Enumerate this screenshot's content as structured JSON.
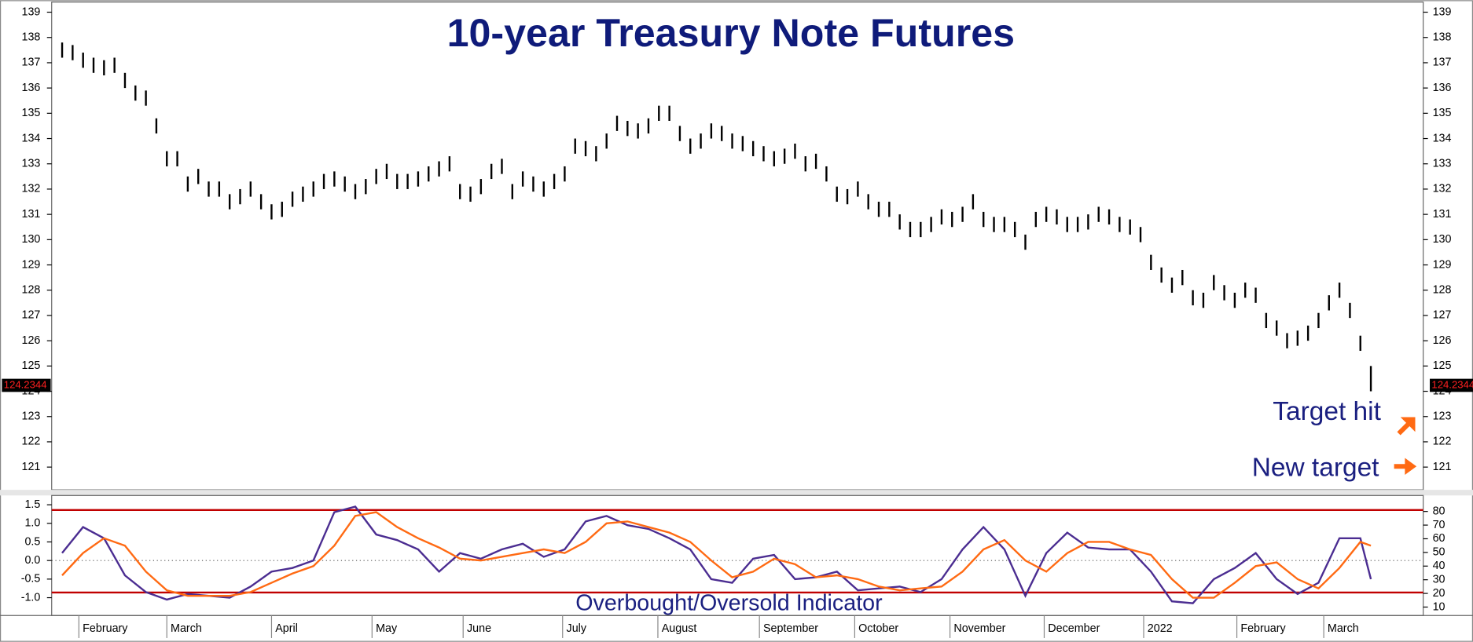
{
  "chart_data": [
    {
      "type": "ohlc",
      "title": "10-year Treasury Note Futures",
      "color": "#000000",
      "xlim": [
        -1,
        130
      ],
      "ylim": [
        120.1,
        139.4
      ],
      "yticks": [
        121,
        122,
        123,
        124,
        125,
        126,
        127,
        128,
        129,
        130,
        131,
        132,
        133,
        134,
        135,
        136,
        137,
        138,
        139
      ],
      "high": [
        137.8,
        137.7,
        137.4,
        137.2,
        137.1,
        137.2,
        136.6,
        136.1,
        135.9,
        134.8,
        133.5,
        133.5,
        132.5,
        132.8,
        132.3,
        132.3,
        131.8,
        132.0,
        132.3,
        131.8,
        131.4,
        131.5,
        131.9,
        132.1,
        132.3,
        132.6,
        132.7,
        132.5,
        132.2,
        132.4,
        132.8,
        133.0,
        132.6,
        132.6,
        132.7,
        132.9,
        133.1,
        133.3,
        132.2,
        132.1,
        132.4,
        133.0,
        133.2,
        132.2,
        132.7,
        132.5,
        132.3,
        132.6,
        132.9,
        134.0,
        133.9,
        133.7,
        134.2,
        134.9,
        134.7,
        134.6,
        134.8,
        135.3,
        135.3,
        134.5,
        134.0,
        134.2,
        134.6,
        134.5,
        134.2,
        134.1,
        133.9,
        133.7,
        133.5,
        133.6,
        133.8,
        133.3,
        133.4,
        132.9,
        132.1,
        132.0,
        132.3,
        131.8,
        131.5,
        131.5,
        131.0,
        130.7,
        130.7,
        130.9,
        131.2,
        131.1,
        131.3,
        131.8,
        131.1,
        130.9,
        130.9,
        130.7,
        130.2,
        131.1,
        131.3,
        131.2,
        130.9,
        130.9,
        131.0,
        131.3,
        131.2,
        130.9,
        130.8,
        130.5,
        129.4,
        128.9,
        128.5,
        128.8,
        128.0,
        127.9,
        128.6,
        128.2,
        127.9,
        128.3,
        128.1,
        127.1,
        126.8,
        126.3,
        126.4,
        126.6,
        127.1,
        127.8,
        128.3,
        127.5,
        126.2,
        125.0
      ],
      "low": [
        137.2,
        137.1,
        136.8,
        136.6,
        136.5,
        136.6,
        136.0,
        135.5,
        135.3,
        134.2,
        132.9,
        132.9,
        131.9,
        132.2,
        131.7,
        131.7,
        131.2,
        131.4,
        131.7,
        131.2,
        130.8,
        130.9,
        131.3,
        131.5,
        131.7,
        132.0,
        132.1,
        131.9,
        131.6,
        131.8,
        132.2,
        132.4,
        132.0,
        132.0,
        132.1,
        132.3,
        132.5,
        132.7,
        131.6,
        131.5,
        131.8,
        132.4,
        132.6,
        131.6,
        132.1,
        131.9,
        131.7,
        132.0,
        132.3,
        133.4,
        133.3,
        133.1,
        133.6,
        134.3,
        134.1,
        134.0,
        134.2,
        134.7,
        134.7,
        133.9,
        133.4,
        133.6,
        134.0,
        133.9,
        133.6,
        133.5,
        133.3,
        133.1,
        132.9,
        133.0,
        133.2,
        132.7,
        132.8,
        132.3,
        131.5,
        131.4,
        131.7,
        131.2,
        130.9,
        130.9,
        130.4,
        130.1,
        130.1,
        130.3,
        130.6,
        130.5,
        130.7,
        131.2,
        130.5,
        130.3,
        130.3,
        130.1,
        129.6,
        130.5,
        130.7,
        130.6,
        130.3,
        130.3,
        130.4,
        130.7,
        130.6,
        130.3,
        130.2,
        129.9,
        128.8,
        128.3,
        127.9,
        128.2,
        127.4,
        127.3,
        128.0,
        127.6,
        127.3,
        127.7,
        127.5,
        126.5,
        126.2,
        125.7,
        125.8,
        126.0,
        126.5,
        127.2,
        127.7,
        126.9,
        125.6,
        124.0
      ],
      "last_value": 124.2344,
      "annotations": [
        "Target hit",
        "New target"
      ]
    },
    {
      "type": "line",
      "annotation": "Overbought/Oversold Indicator",
      "xlim": [
        -1,
        130
      ],
      "ylim": [
        -1.48,
        1.75
      ],
      "y2lim": [
        3.8,
        91.7
      ],
      "yticks": [
        {
          "value": -1,
          "label": "-1.0"
        },
        -0.5,
        {
          "value": 0,
          "label": "0.0"
        },
        0.5,
        {
          "value": 1,
          "label": "1.0"
        },
        1.5
      ],
      "y2ticks": [
        10,
        20,
        30,
        40,
        50,
        60,
        70,
        80
      ],
      "hlines": [
        1.36,
        -0.86
      ],
      "hline_color": "#c00000",
      "zero_line": true,
      "xticks": [
        {
          "value": 1.6,
          "label": "February"
        },
        {
          "value": 10,
          "label": "March"
        },
        {
          "value": 20,
          "label": "April"
        },
        {
          "value": 29.6,
          "label": "May"
        },
        {
          "value": 38.3,
          "label": "June"
        },
        {
          "value": 47.8,
          "label": "July"
        },
        {
          "value": 56.9,
          "label": "August"
        },
        {
          "value": 66.6,
          "label": "September"
        },
        {
          "value": 75.7,
          "label": "October"
        },
        {
          "value": 84.8,
          "label": "November"
        },
        {
          "value": 93.8,
          "label": "December"
        },
        {
          "value": 103.3,
          "label": "2022"
        },
        {
          "value": 112.2,
          "label": "February"
        },
        {
          "value": 120.5,
          "label": "March"
        }
      ],
      "x": [
        0,
        2,
        4,
        6,
        8,
        10,
        12,
        14,
        16,
        18,
        20,
        22,
        24,
        26,
        28,
        30,
        32,
        34,
        36,
        38,
        40,
        42,
        44,
        46,
        48,
        50,
        52,
        54,
        56,
        58,
        60,
        62,
        64,
        66,
        68,
        70,
        72,
        74,
        76,
        78,
        80,
        82,
        84,
        86,
        88,
        90,
        92,
        94,
        96,
        98,
        100,
        102,
        104,
        106,
        108,
        110,
        112,
        114,
        116,
        118,
        120,
        122,
        124,
        125
      ],
      "series": [
        {
          "color": "#4b2d91",
          "values": [
            0.2,
            0.9,
            0.6,
            -0.4,
            -0.85,
            -1.05,
            -0.9,
            -0.95,
            -1.0,
            -0.7,
            -0.3,
            -0.2,
            0.0,
            1.3,
            1.45,
            0.7,
            0.55,
            0.3,
            -0.3,
            0.2,
            0.05,
            0.3,
            0.45,
            0.1,
            0.3,
            1.05,
            1.2,
            0.95,
            0.85,
            0.6,
            0.3,
            -0.5,
            -0.6,
            0.05,
            0.15,
            -0.5,
            -0.45,
            -0.3,
            -0.8,
            -0.75,
            -0.7,
            -0.85,
            -0.5,
            0.3,
            0.9,
            0.3,
            -0.95,
            0.2,
            0.75,
            0.35,
            0.3,
            0.3,
            -0.3,
            -1.1,
            -1.15,
            -0.5,
            -0.2,
            0.2,
            -0.5,
            -0.9,
            -0.6,
            0.6,
            0.6,
            -0.5
          ]
        },
        {
          "color": "#ff6a13",
          "values": [
            -0.4,
            0.2,
            0.6,
            0.4,
            -0.3,
            -0.8,
            -0.95,
            -0.95,
            -0.95,
            -0.85,
            -0.6,
            -0.35,
            -0.15,
            0.4,
            1.2,
            1.3,
            0.9,
            0.6,
            0.35,
            0.05,
            0.0,
            0.1,
            0.2,
            0.3,
            0.2,
            0.5,
            1.0,
            1.05,
            0.9,
            0.75,
            0.5,
            0.0,
            -0.45,
            -0.3,
            0.05,
            -0.1,
            -0.45,
            -0.4,
            -0.5,
            -0.7,
            -0.8,
            -0.75,
            -0.7,
            -0.3,
            0.3,
            0.55,
            0.0,
            -0.3,
            0.2,
            0.5,
            0.5,
            0.3,
            0.15,
            -0.5,
            -1.0,
            -1.0,
            -0.6,
            -0.15,
            -0.05,
            -0.5,
            -0.75,
            -0.2,
            0.5,
            0.4
          ]
        }
      ]
    }
  ]
}
